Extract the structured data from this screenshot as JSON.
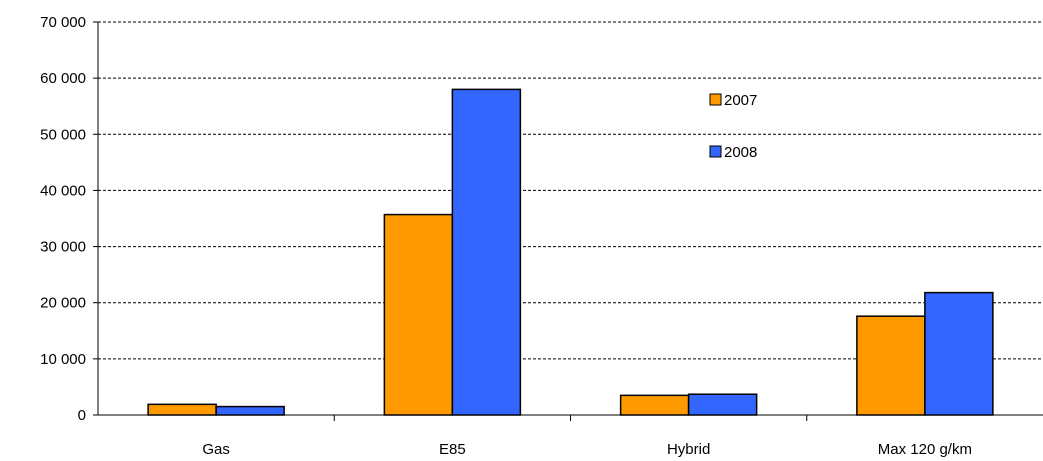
{
  "chart_data": {
    "type": "bar",
    "title": "",
    "xlabel": "",
    "ylabel": "",
    "categories": [
      "Gas",
      "E85",
      "Hybrid",
      "Max 120 g/km"
    ],
    "series": [
      {
        "name": "2007",
        "color": "#FF9900",
        "values": [
          1900,
          35700,
          3500,
          17600
        ]
      },
      {
        "name": "2008",
        "color": "#3366FF",
        "values": [
          1500,
          58000,
          3700,
          21800
        ]
      }
    ],
    "ylim": [
      0,
      70000
    ],
    "yticks": [
      0,
      10000,
      20000,
      30000,
      40000,
      50000,
      60000,
      70000
    ],
    "ytick_labels": [
      "0",
      "10 000",
      "20 000",
      "30 000",
      "40 000",
      "50 000",
      "60 000",
      "70 000"
    ],
    "grid": true,
    "grid_style": "dashed",
    "legend_position": "top-right (inside plot)"
  }
}
